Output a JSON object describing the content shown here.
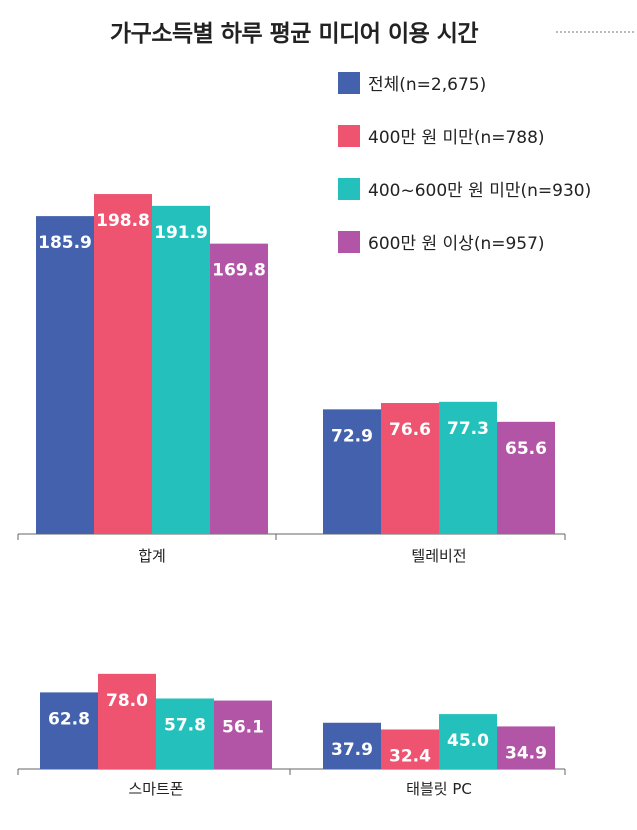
{
  "title": "가구소득별 하루 평균 미디어 이용 시간",
  "chart_data": {
    "type": "bar",
    "title": "가구소득별 하루 평균 미디어 이용 시간",
    "categories": [
      "합계",
      "텔레비전",
      "스마트폰",
      "태블릿 PC"
    ],
    "series": [
      {
        "name": "전체(n=2,675)",
        "color": "#4361ad",
        "values": [
          185.9,
          72.9,
          62.8,
          37.9
        ]
      },
      {
        "name": "400만 원 미만(n=788)",
        "color": "#ee5470",
        "values": [
          198.8,
          76.6,
          78.0,
          32.4
        ]
      },
      {
        "name": "400~600만 원 미만(n=930)",
        "color": "#24c1bc",
        "values": [
          191.9,
          77.3,
          57.8,
          45.0
        ]
      },
      {
        "name": "600만 원 이상(n=957)",
        "color": "#b255a6",
        "values": [
          169.8,
          65.6,
          56.1,
          34.9
        ]
      }
    ],
    "xlabel": "",
    "ylabel": "",
    "legend": "top-right"
  }
}
